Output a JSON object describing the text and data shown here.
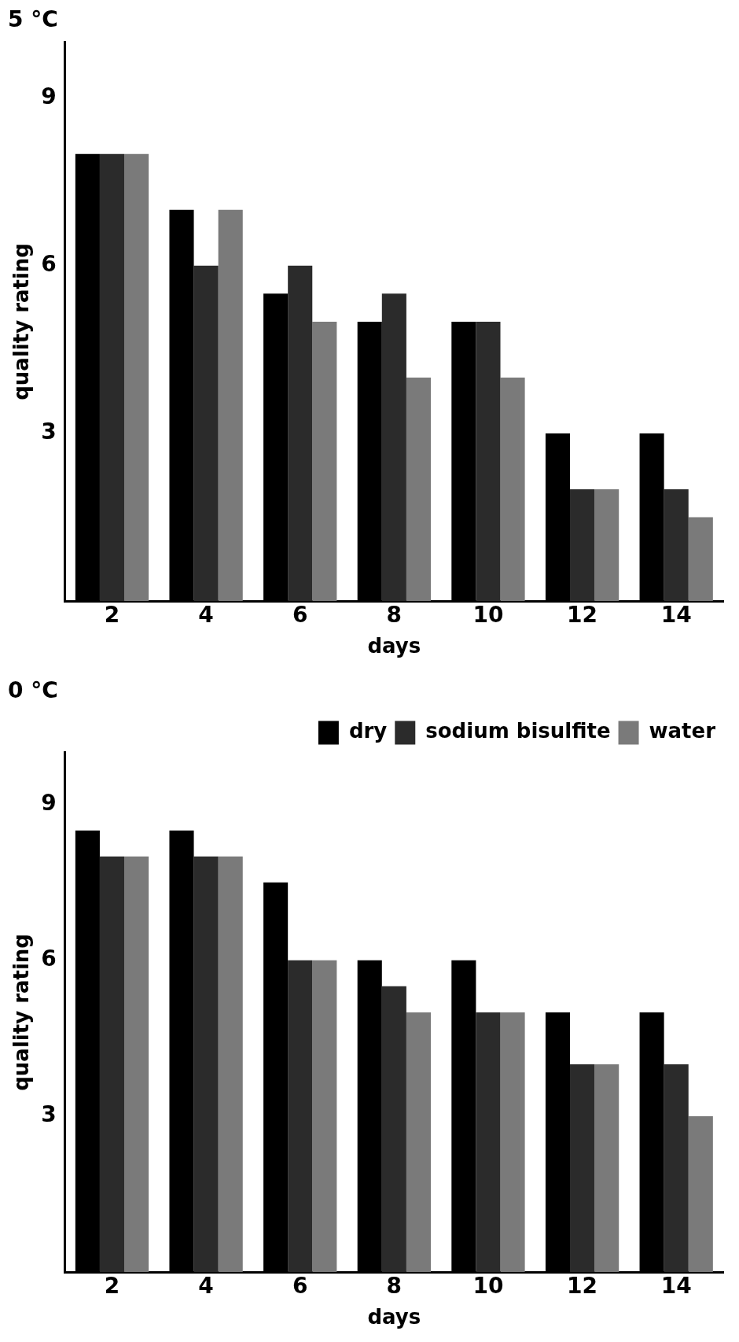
{
  "chart_data": [
    {
      "type": "bar",
      "title": "5 °C",
      "xlabel": "days",
      "ylabel": "quality rating",
      "categories": [
        "2",
        "4",
        "6",
        "8",
        "10",
        "12",
        "14"
      ],
      "ylim": [
        0,
        10
      ],
      "yticks": [
        3,
        6,
        9
      ],
      "grid": false,
      "legend": false,
      "series": [
        {
          "color": "#000000",
          "values": [
            8,
            7,
            5.5,
            5,
            5,
            3,
            3
          ]
        },
        {
          "color": "#2b2b2b",
          "values": [
            8,
            6,
            6,
            5.5,
            5,
            2,
            2
          ]
        },
        {
          "color": "#7a7a7a",
          "values": [
            8,
            7,
            5,
            4,
            4,
            2,
            1.5
          ]
        }
      ]
    },
    {
      "type": "bar",
      "title": "0 °C",
      "xlabel": "days",
      "ylabel": "quality rating",
      "categories": [
        "2",
        "4",
        "6",
        "8",
        "10",
        "12",
        "14"
      ],
      "ylim": [
        0,
        10
      ],
      "yticks": [
        3,
        6,
        9
      ],
      "grid": false,
      "legend": "top right",
      "series": [
        {
          "name": "dry",
          "color": "#000000",
          "values": [
            8.5,
            8.5,
            7.5,
            6,
            6,
            5,
            5
          ]
        },
        {
          "name": "sodium bisulfite",
          "color": "#2b2b2b",
          "values": [
            8,
            8,
            6,
            5.5,
            5,
            4,
            4
          ]
        },
        {
          "name": "water",
          "color": "#7a7a7a",
          "values": [
            8,
            8,
            6,
            5,
            5,
            4,
            3
          ]
        }
      ]
    }
  ]
}
